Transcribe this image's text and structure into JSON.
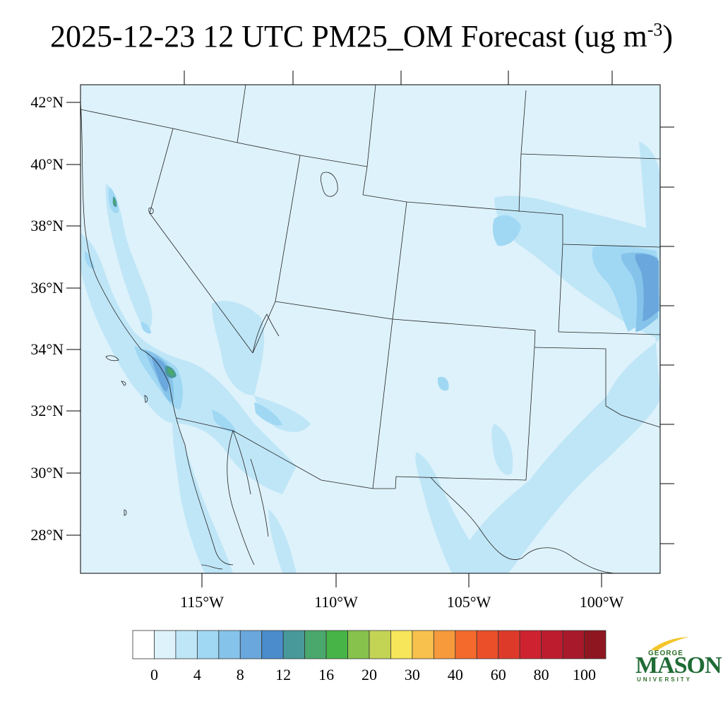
{
  "title": {
    "text": "2025-12-23 12 UTC PM25_OM Forecast (ug m",
    "exponent": "-3",
    "close": ")"
  },
  "map": {
    "variable": "PM25_OM",
    "units": "ug m-3",
    "lon_range": [
      -119.5,
      -97.8
    ],
    "lat_range": [
      26.8,
      42.6
    ],
    "lat_labels": [
      "42°N",
      "40°N",
      "38°N",
      "36°N",
      "34°N",
      "32°N",
      "30°N",
      "28°N"
    ],
    "lon_labels": [
      "115°W",
      "110°W",
      "105°W",
      "100°W"
    ],
    "background_color": "#def2fb"
  },
  "colorbar": {
    "labels": [
      "0",
      "4",
      "8",
      "12",
      "16",
      "20",
      "30",
      "40",
      "60",
      "80",
      "100"
    ],
    "colors": [
      "#ffffff",
      "#def2fb",
      "#bfe6f7",
      "#a0d8f4",
      "#86c3ea",
      "#6aa7dc",
      "#4a8ccc",
      "#47999a",
      "#4aa86c",
      "#47b448",
      "#86c24c",
      "#c3d455",
      "#f7e55a",
      "#f8c14d",
      "#f79a3c",
      "#f46a2c",
      "#ea4f2a",
      "#de3a2a",
      "#cf2230",
      "#bd1c2e",
      "#a8192b",
      "#8e1620"
    ]
  },
  "logo": {
    "line1": "GEORGE",
    "line2": "MASON",
    "line3": "UNIVERSITY"
  }
}
